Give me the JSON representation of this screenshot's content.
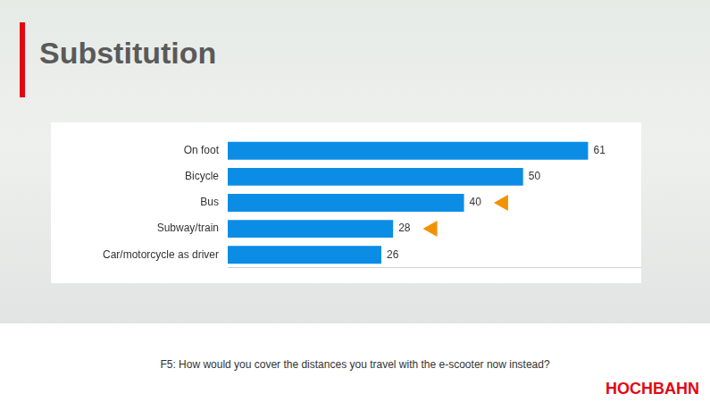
{
  "chart_data": {
    "type": "bar",
    "title": "Substitution",
    "subtitle": "F5: How would you cover the distances you travel with the e-scooter now instead?",
    "annotations": [
      "HOCHBAHN"
    ],
    "categories": [
      "On foot",
      "Bicycle",
      "Bus",
      "Subway/train",
      "Car/motorcycle as driver"
    ],
    "values": [
      61,
      50,
      40,
      28,
      26
    ],
    "color": "#0b8de6",
    "orientation": "horizontal",
    "xlim": [
      0,
      70
    ],
    "grid": false,
    "data_labels": true,
    "tick_labels": "y"
  }
}
